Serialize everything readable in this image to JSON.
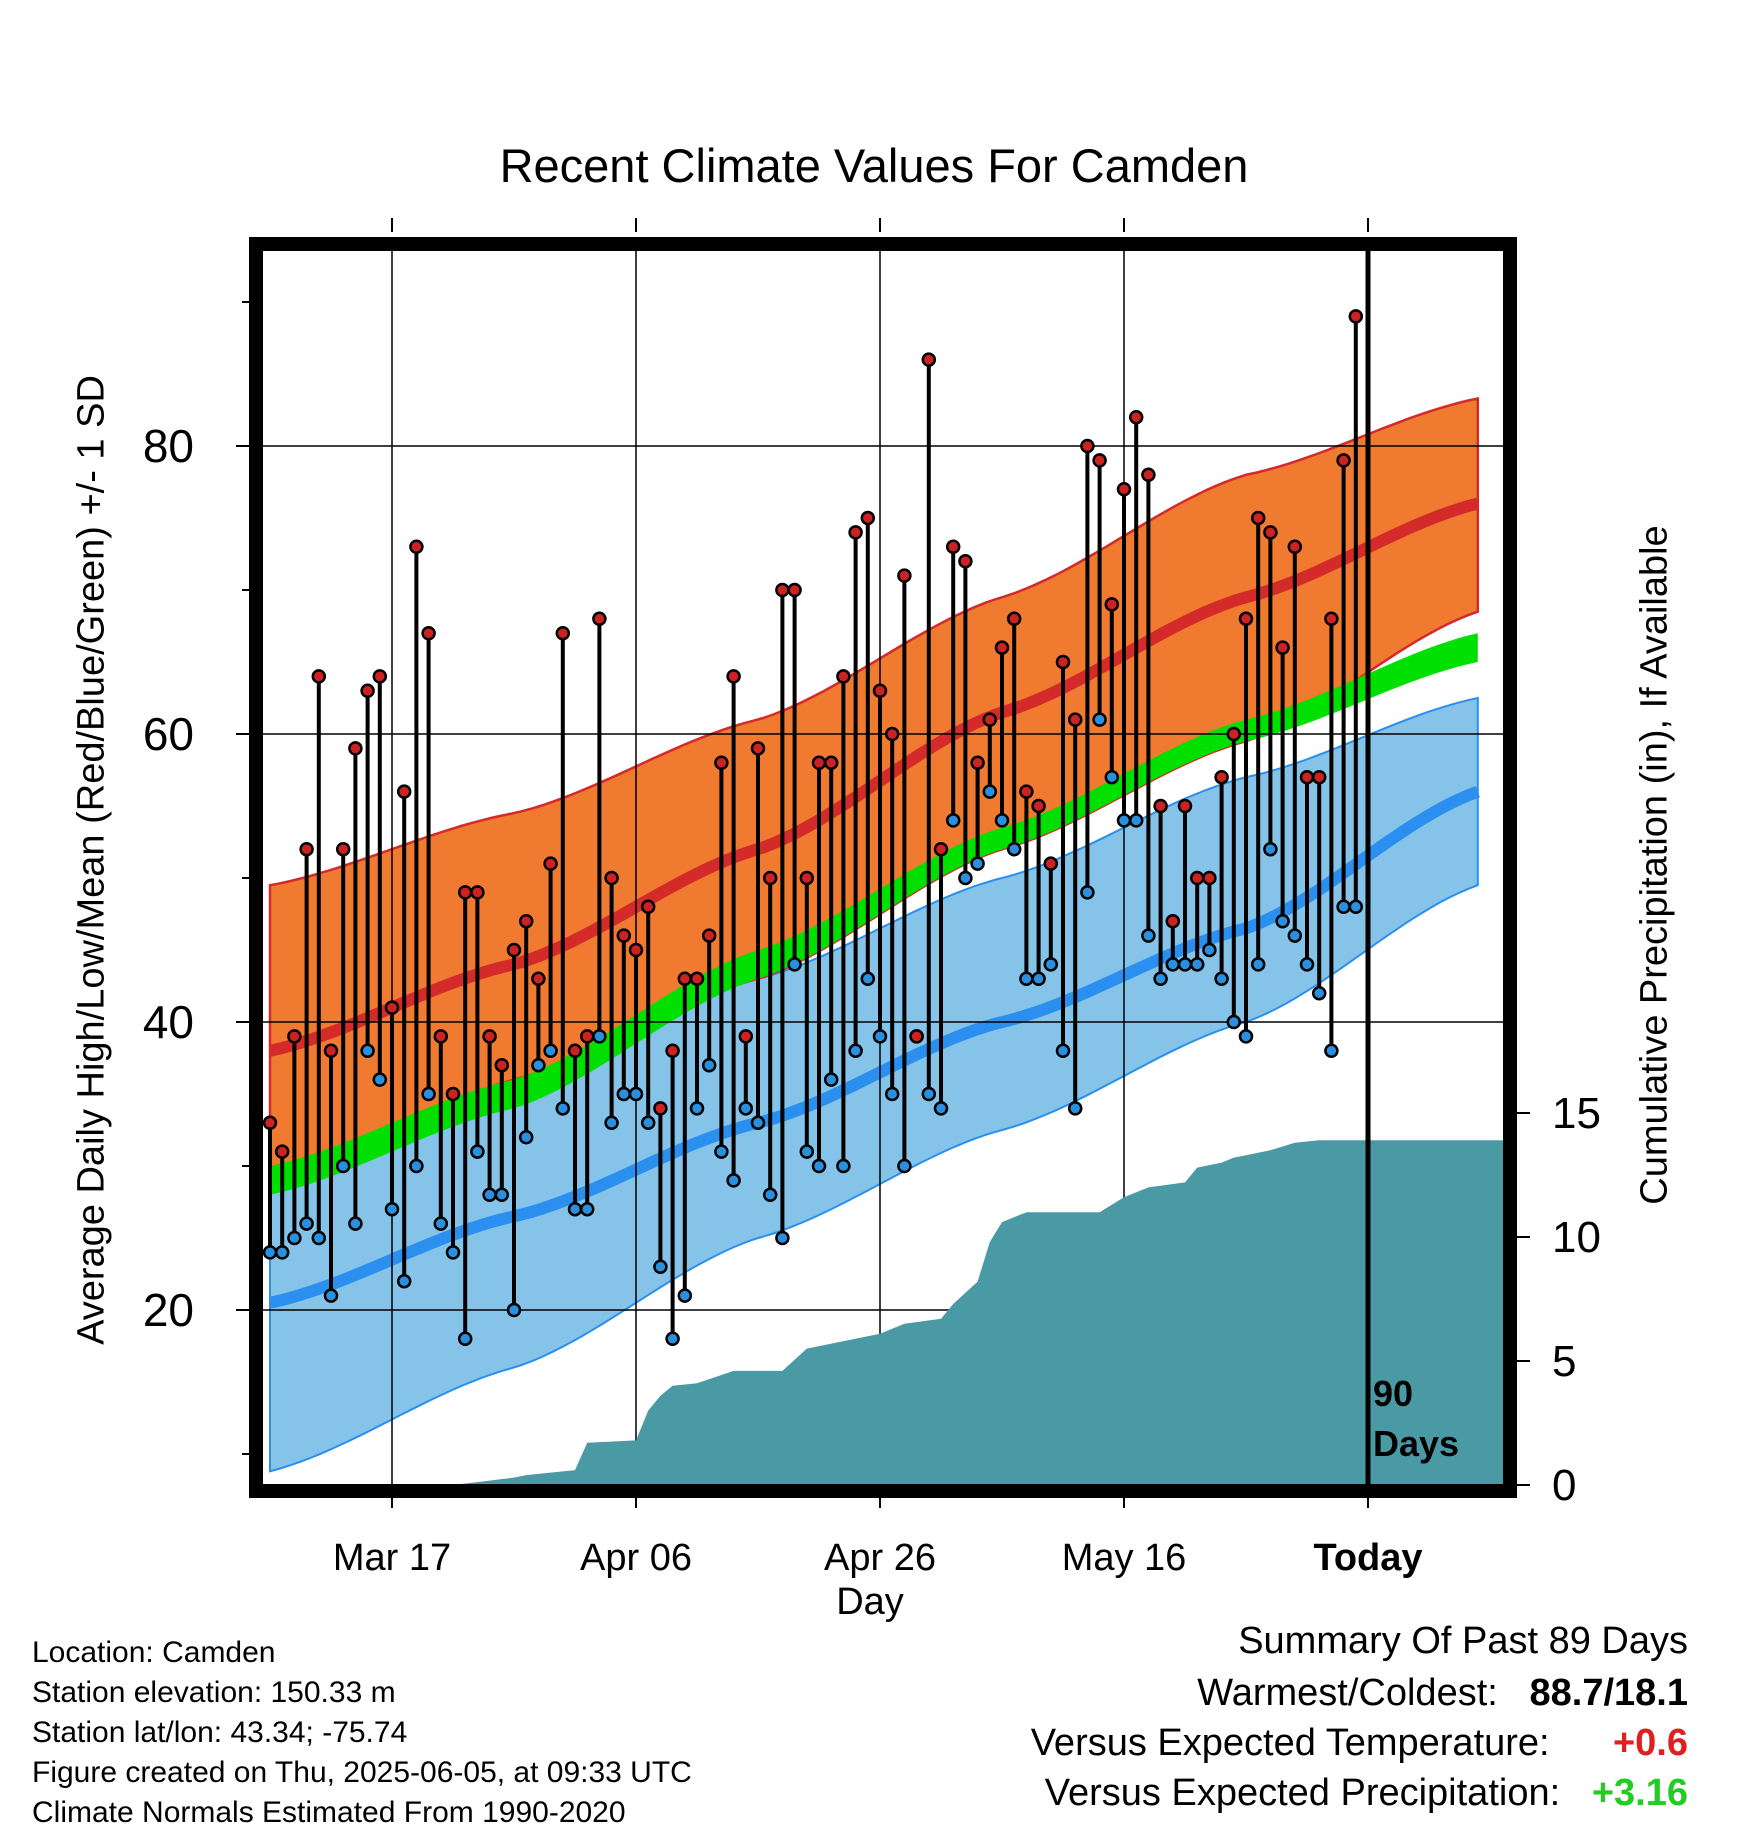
{
  "title": "Recent Climate Values For Camden",
  "chart_data": {
    "type": "line",
    "title": "Recent Climate Values For Camden",
    "xlabel": "Day",
    "ylabel": "Average Daily High/Low/Mean (Red/Blue/Green) +/- 1 SD",
    "y2label": "Cumulative Precipitation (in), If Available",
    "x_tick_labels": [
      "Mar 17",
      "Apr 06",
      "Apr 26",
      "May 16",
      "Today"
    ],
    "ylim": [
      8.6,
      96.9
    ],
    "yticks": [
      20,
      40,
      60,
      80
    ],
    "y2lim": [
      0,
      28
    ],
    "y2ticks": [
      0,
      5,
      10,
      15
    ],
    "grid": true,
    "today_marker": "90 Days",
    "normals": {
      "day_index": [
        0,
        20,
        40,
        60,
        80,
        99
      ],
      "high_mean": [
        38.0,
        44.0,
        52.0,
        61.5,
        69.5,
        76.0
      ],
      "high_plus_sd": [
        49.5,
        54.5,
        61.0,
        69.5,
        78.0,
        83.3
      ],
      "high_minus_sd": [
        28.5,
        36.0,
        43.0,
        52.0,
        59.5,
        68.5
      ],
      "low_mean": [
        20.5,
        26.5,
        33.0,
        40.0,
        46.5,
        56.0
      ],
      "low_plus_sd": [
        31.0,
        37.0,
        43.0,
        50.0,
        57.0,
        62.5
      ],
      "low_minus_sd": [
        8.8,
        16.0,
        25.0,
        32.5,
        40.0,
        49.5
      ],
      "mean_low": [
        28.0,
        34.0,
        43.0,
        52.0,
        59.5,
        65.0
      ],
      "mean_high": [
        30.0,
        36.0,
        45.0,
        53.5,
        61.0,
        67.0
      ]
    },
    "series": [
      {
        "name": "High",
        "x": [
          0,
          1,
          2,
          3,
          4,
          5,
          6,
          7,
          8,
          9,
          10,
          11,
          12,
          13,
          14,
          15,
          16,
          17,
          18,
          19,
          20,
          21,
          22,
          23,
          24,
          25,
          26,
          27,
          28,
          29,
          30,
          31,
          32,
          33,
          34,
          35,
          36,
          37,
          38,
          39,
          40,
          41,
          42,
          43,
          44,
          45,
          46,
          47,
          48,
          49,
          50,
          51,
          52,
          53,
          54,
          55,
          56,
          57,
          58,
          59,
          60,
          61,
          62,
          63,
          64,
          65,
          66,
          67,
          68,
          69,
          70,
          71,
          72,
          73,
          74,
          75,
          76,
          77,
          78,
          79,
          80,
          81,
          82,
          83,
          84,
          85,
          86,
          87,
          88,
          89
        ],
        "values": [
          33,
          31,
          39,
          52,
          64,
          38,
          52,
          59,
          63,
          64,
          41,
          56,
          73,
          67,
          39,
          35,
          49,
          49,
          39,
          37,
          45,
          47,
          43,
          51,
          67,
          38,
          39,
          68,
          50,
          46,
          45,
          48,
          34,
          38,
          43,
          43,
          46,
          58,
          64,
          39,
          59,
          50,
          70,
          70,
          50,
          58,
          58,
          64,
          74,
          75,
          63,
          60,
          71,
          39,
          86,
          52,
          73,
          72,
          58,
          61,
          66,
          68,
          56,
          55,
          51,
          65,
          61,
          80,
          79,
          69,
          77,
          82,
          78,
          55,
          47,
          55,
          50,
          50,
          57,
          60,
          68,
          75,
          74,
          66,
          73,
          57,
          57,
          68,
          79,
          89
        ]
      },
      {
        "name": "Low",
        "x": [
          0,
          1,
          2,
          3,
          4,
          5,
          6,
          7,
          8,
          9,
          10,
          11,
          12,
          13,
          14,
          15,
          16,
          17,
          18,
          19,
          20,
          21,
          22,
          23,
          24,
          25,
          26,
          27,
          28,
          29,
          30,
          31,
          32,
          33,
          34,
          35,
          36,
          37,
          38,
          39,
          40,
          41,
          42,
          43,
          44,
          45,
          46,
          47,
          48,
          49,
          50,
          51,
          52,
          53,
          54,
          55,
          56,
          57,
          58,
          59,
          60,
          61,
          62,
          63,
          64,
          65,
          66,
          67,
          68,
          69,
          70,
          71,
          72,
          73,
          74,
          75,
          76,
          77,
          78,
          79,
          80,
          81,
          82,
          83,
          84,
          85,
          86,
          87,
          88,
          89
        ],
        "values": [
          24,
          24,
          25,
          26,
          25,
          21,
          30,
          26,
          38,
          36,
          27,
          22,
          30,
          35,
          26,
          24,
          18,
          31,
          28,
          28,
          20,
          32,
          37,
          38,
          34,
          27,
          27,
          39,
          33,
          35,
          35,
          33,
          23,
          18,
          21,
          34,
          37,
          31,
          29,
          34,
          33,
          28,
          25,
          44,
          31,
          30,
          36,
          30,
          38,
          43,
          39,
          35,
          30,
          39,
          35,
          34,
          54,
          50,
          51,
          56,
          54,
          52,
          43,
          43,
          44,
          38,
          34,
          49,
          61,
          57,
          54,
          54,
          46,
          43,
          44,
          44,
          44,
          45,
          43,
          40,
          39,
          44,
          52,
          47,
          46,
          44,
          42,
          38,
          48,
          48
        ]
      }
    ],
    "precipitation": {
      "x": [
        15,
        20,
        21,
        25,
        26,
        30,
        31,
        32,
        33,
        35,
        38,
        42,
        44,
        50,
        52,
        55,
        56,
        58,
        59,
        60,
        62,
        68,
        70,
        72,
        75,
        76,
        78,
        79,
        80,
        82,
        84,
        86
      ],
      "cumulative": [
        0,
        0.3,
        0.4,
        0.6,
        1.7,
        1.8,
        3.0,
        3.6,
        4.0,
        4.1,
        4.6,
        4.6,
        5.5,
        6.1,
        6.5,
        6.7,
        7.3,
        8.2,
        9.8,
        10.6,
        11.0,
        11.0,
        11.6,
        12.0,
        12.2,
        12.8,
        13.0,
        13.2,
        13.3,
        13.5,
        13.8,
        13.9
      ]
    }
  },
  "location_info": [
    "Location: Camden",
    "Station elevation: 150.33 m",
    "Station lat/lon: 43.34; -75.74",
    "Figure created on Thu, 2025-06-05, at 09:33 UTC",
    "Climate Normals Estimated From 1990-2020"
  ],
  "summary": {
    "heading": "Summary Of Past 89 Days",
    "warm_cold_label": "Warmest/Coldest:",
    "warm_cold_value": "88.7/18.1",
    "temp_label": "Versus Expected Temperature:",
    "temp_value": "+0.6",
    "precip_label": "Versus Expected Precipitation:",
    "precip_value": "+3.16"
  },
  "colors": {
    "high_band": "#f07a30",
    "high_line": "#d42a2a",
    "low_band": "#85c3e8",
    "low_line": "#2a8fee",
    "mean_band": "#00e000",
    "precip_fill": "#4a9aa5",
    "high_dot": "#cc2222",
    "low_dot": "#2a90dd",
    "temp_anomaly": "#e02020",
    "precip_anomaly": "#22cc22"
  }
}
